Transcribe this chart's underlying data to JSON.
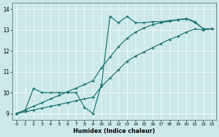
{
  "xlabel": "Humidex (Indice chaleur)",
  "bg_color": "#cce8e8",
  "grid_color": "#ffffff",
  "line_color": "#1a7070",
  "xlim": [
    -0.5,
    23.5
  ],
  "ylim": [
    8.7,
    14.3
  ],
  "xticks": [
    0,
    1,
    2,
    3,
    4,
    5,
    6,
    7,
    8,
    9,
    10,
    11,
    12,
    13,
    14,
    15,
    16,
    17,
    18,
    19,
    20,
    21,
    22,
    23
  ],
  "yticks": [
    9,
    10,
    11,
    12,
    13,
    14
  ],
  "line1_x": [
    0,
    1,
    2,
    3,
    4,
    5,
    6,
    7,
    8,
    9,
    10,
    11,
    12,
    13,
    14,
    15,
    16,
    17,
    18,
    19,
    20,
    21,
    22,
    23
  ],
  "line1_y": [
    9.0,
    9.15,
    10.2,
    10.0,
    10.0,
    10.0,
    10.0,
    10.0,
    9.3,
    9.0,
    10.4,
    13.65,
    13.35,
    13.65,
    13.35,
    13.35,
    13.4,
    13.4,
    13.45,
    13.5,
    13.55,
    13.4,
    13.05,
    13.05
  ],
  "line2_x": [
    0,
    1,
    2,
    3,
    4,
    5,
    6,
    7,
    8,
    9,
    10,
    11,
    12,
    13,
    14,
    15,
    16,
    17,
    18,
    19,
    20,
    21,
    22,
    23
  ],
  "line2_y": [
    9.0,
    9.08,
    9.17,
    9.26,
    9.35,
    9.43,
    9.52,
    9.61,
    9.7,
    9.78,
    10.3,
    10.7,
    11.1,
    11.5,
    11.75,
    11.95,
    12.15,
    12.35,
    12.55,
    12.7,
    12.9,
    13.05,
    13.0,
    13.05
  ],
  "line3_x": [
    0,
    1,
    2,
    3,
    4,
    5,
    6,
    7,
    8,
    9,
    10,
    11,
    12,
    13,
    14,
    15,
    16,
    17,
    18,
    19,
    20,
    21,
    22,
    23
  ],
  "line3_y": [
    9.0,
    9.17,
    9.35,
    9.52,
    9.7,
    9.87,
    10.04,
    10.22,
    10.39,
    10.57,
    11.2,
    11.7,
    12.2,
    12.6,
    12.9,
    13.1,
    13.25,
    13.35,
    13.42,
    13.48,
    13.53,
    13.37,
    13.05,
    13.05
  ]
}
